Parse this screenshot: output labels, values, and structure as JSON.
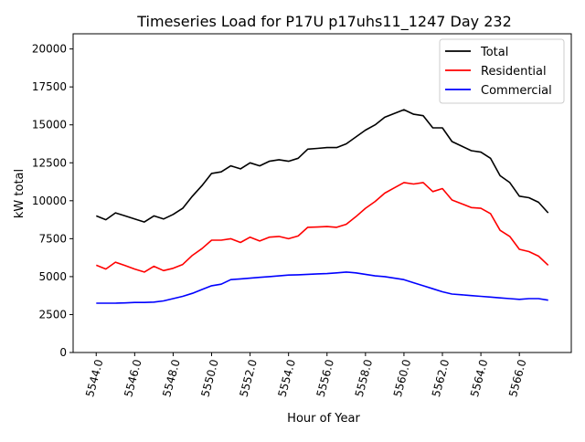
{
  "chart_data": {
    "type": "line",
    "title": "Timeseries Load for P17U p17uhs11_1247  Day 232",
    "xlabel": "Hour of Year",
    "ylabel": "kW total",
    "xlim": [
      5542.8,
      5568.7
    ],
    "ylim": [
      0,
      21000
    ],
    "xticks": [
      5544,
      5546,
      5548,
      5550,
      5552,
      5554,
      5556,
      5558,
      5560,
      5562,
      5564,
      5566
    ],
    "xtick_labels": [
      "5544.0",
      "5546.0",
      "5548.0",
      "5550.0",
      "5552.0",
      "5554.0",
      "5556.0",
      "5558.0",
      "5560.0",
      "5562.0",
      "5564.0",
      "5566.0"
    ],
    "yticks": [
      0,
      2500,
      5000,
      7500,
      10000,
      12500,
      15000,
      17500,
      20000
    ],
    "ytick_labels": [
      "0",
      "2500",
      "5000",
      "7500",
      "10000",
      "12500",
      "15000",
      "17500",
      "20000"
    ],
    "legend_position": "top-right",
    "grid": false,
    "x": [
      5544,
      5544.5,
      5545,
      5545.5,
      5546,
      5546.5,
      5547,
      5547.5,
      5548,
      5548.5,
      5549,
      5549.5,
      5550,
      5550.5,
      5551,
      5551.5,
      5552,
      5552.5,
      5553,
      5553.5,
      5554,
      5554.5,
      5555,
      5555.5,
      5556,
      5556.5,
      5557,
      5557.5,
      5558,
      5558.5,
      5559,
      5559.5,
      5560,
      5560.5,
      5561,
      5561.5,
      5562,
      5562.5,
      5563,
      5563.5,
      5564,
      5564.5,
      5565,
      5565.5,
      5566,
      5566.5,
      5567,
      5567.5
    ],
    "series": [
      {
        "name": "Total",
        "color": "#000000",
        "values": [
          9000,
          8750,
          9200,
          9000,
          8800,
          8600,
          9000,
          8800,
          9100,
          9500,
          10300,
          11000,
          11800,
          11900,
          12300,
          12100,
          12500,
          12300,
          12600,
          12700,
          12600,
          12800,
          13400,
          13450,
          13500,
          13500,
          13750,
          14200,
          14650,
          15000,
          15500,
          15750,
          16000,
          15700,
          15600,
          14800,
          14800,
          13900,
          13600,
          13300,
          13200,
          12800,
          11650,
          11200,
          10300,
          10200,
          9900,
          9200
        ]
      },
      {
        "name": "Residential",
        "color": "#ff0000",
        "values": [
          5750,
          5500,
          5950,
          5730,
          5500,
          5300,
          5680,
          5400,
          5550,
          5800,
          6400,
          6850,
          7400,
          7400,
          7500,
          7250,
          7600,
          7350,
          7600,
          7650,
          7500,
          7680,
          8250,
          8270,
          8300,
          8250,
          8450,
          8950,
          9500,
          9950,
          10500,
          10850,
          11200,
          11100,
          11200,
          10600,
          10800,
          10050,
          9800,
          9550,
          9500,
          9150,
          8050,
          7650,
          6800,
          6650,
          6350,
          5750
        ]
      },
      {
        "name": "Commercial",
        "color": "#0000ff",
        "values": [
          3250,
          3250,
          3250,
          3270,
          3300,
          3300,
          3320,
          3400,
          3550,
          3700,
          3900,
          4150,
          4400,
          4500,
          4800,
          4850,
          4900,
          4950,
          5000,
          5050,
          5100,
          5120,
          5150,
          5180,
          5200,
          5250,
          5300,
          5250,
          5150,
          5050,
          5000,
          4900,
          4800,
          4600,
          4400,
          4200,
          4000,
          3850,
          3800,
          3750,
          3700,
          3650,
          3600,
          3550,
          3500,
          3550,
          3550,
          3450
        ]
      }
    ]
  }
}
